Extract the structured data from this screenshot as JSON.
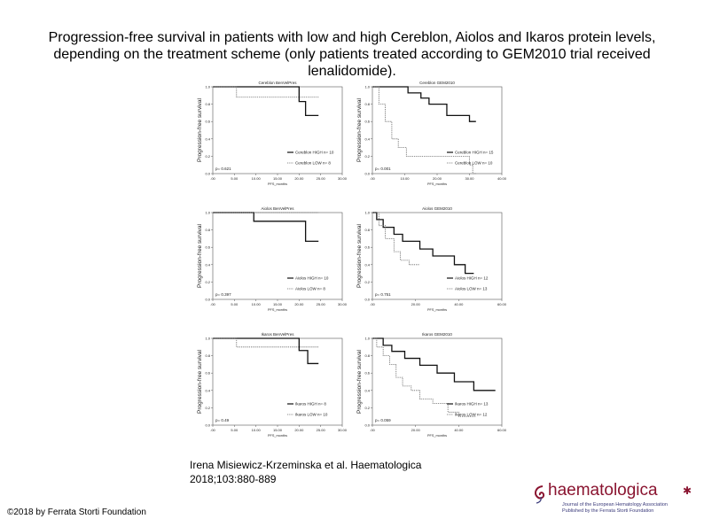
{
  "title": "Progression-free survival in patients with low and high Cereblon, Aiolos and Ikaros protein levels, depending on the treatment scheme (only patients treated according to GEM2010 trial received lenalidomide).",
  "citation": {
    "line1": "Irena Misiewicz-Krzeminska et al. Haematologica",
    "line2": "2018;103:880-889"
  },
  "copyright": "©2018 by Ferrata Storti Foundation",
  "logo": {
    "brand": "haematologica",
    "tagline1": "Journal of the European Hematology Association",
    "tagline2": "Published by the Ferrata Storti Foundation",
    "accent_color": "#8a1430"
  },
  "chart_data": [
    {
      "type": "line",
      "title": "Cereblon BenVelPres",
      "ylabel": "Progression-free survival",
      "xlabel": "PFS_months",
      "xlim": [
        0,
        30
      ],
      "ylim": [
        0,
        1
      ],
      "xticks": [
        ".00",
        "5.00",
        "10.00",
        "15.00",
        "20.00",
        "25.00",
        "30.00"
      ],
      "yticks": [
        "0.0",
        "0.2",
        "0.4",
        "0.6",
        "0.8",
        "1.0"
      ],
      "pvalue": "p= 0.621",
      "series": [
        {
          "name": "Cereblon HIGH n= 10",
          "style": "solid",
          "x": [
            0,
            20,
            20,
            21.5,
            21.5,
            24.5
          ],
          "y": [
            1.0,
            1.0,
            0.83,
            0.83,
            0.67,
            0.67
          ]
        },
        {
          "name": "Cereblon LOW n= 8",
          "style": "dotted",
          "x": [
            0,
            5.5,
            5.5,
            24.5
          ],
          "y": [
            1.0,
            1.0,
            0.88,
            0.88
          ]
        }
      ]
    },
    {
      "type": "line",
      "title": "Cereblon GEM2010",
      "ylabel": "Progression-free survival",
      "xlabel": "PFS_months",
      "xlim": [
        0,
        40
      ],
      "ylim": [
        0,
        1
      ],
      "xticks": [
        ".00",
        "10.00",
        "20.00",
        "30.00",
        "40.00"
      ],
      "yticks": [
        "0.0",
        "0.2",
        "0.4",
        "0.6",
        "0.8",
        "1.0"
      ],
      "pvalue": "p= 0.001",
      "series": [
        {
          "name": "Cereblon HIGH n= 15",
          "style": "solid",
          "x": [
            0,
            11,
            11,
            15,
            15,
            17.5,
            17.5,
            23,
            23,
            30,
            30,
            32
          ],
          "y": [
            1.0,
            1.0,
            0.93,
            0.93,
            0.87,
            0.87,
            0.8,
            0.8,
            0.67,
            0.67,
            0.6,
            0.6
          ]
        },
        {
          "name": "Cereblon LOW n= 10",
          "style": "dotted",
          "x": [
            0,
            2,
            2,
            4,
            4,
            6,
            6,
            8,
            8,
            10.5,
            10.5,
            30,
            30,
            31,
            31,
            32
          ],
          "y": [
            1.0,
            1.0,
            0.8,
            0.8,
            0.6,
            0.6,
            0.4,
            0.4,
            0.3,
            0.3,
            0.2,
            0.2,
            0.1,
            0.1,
            0.0,
            0.0
          ]
        }
      ]
    },
    {
      "type": "line",
      "title": "Aiolos BenVelPres",
      "ylabel": "Progression-free survival",
      "xlabel": "PFS_months",
      "xlim": [
        0,
        30
      ],
      "ylim": [
        0,
        1
      ],
      "xticks": [
        ".00",
        "5.00",
        "10.00",
        "15.00",
        "20.00",
        "25.00",
        "30.00"
      ],
      "yticks": [
        "0.0",
        "0.2",
        "0.4",
        "0.6",
        "0.8",
        "1.0"
      ],
      "pvalue": "p= 0.397",
      "series": [
        {
          "name": "Aiolos HIGH n= 10",
          "style": "solid",
          "x": [
            0,
            9.5,
            9.5,
            21.5,
            21.5,
            24.5
          ],
          "y": [
            1.0,
            1.0,
            0.9,
            0.9,
            0.67,
            0.67
          ]
        },
        {
          "name": "Aiolos LOW n= 8",
          "style": "dotted",
          "x": [
            0,
            24.5
          ],
          "y": [
            1.0,
            1.0
          ]
        }
      ]
    },
    {
      "type": "line",
      "title": "Aiolos GEM2010",
      "ylabel": "Progression-free survival",
      "xlabel": "PFS_months",
      "xlim": [
        0,
        60
      ],
      "ylim": [
        0,
        1
      ],
      "xticks": [
        ".00",
        "20.00",
        "40.00",
        "60.00"
      ],
      "yticks": [
        "0.0",
        "0.2",
        "0.4",
        "0.6",
        "0.8",
        "1.0"
      ],
      "pvalue": "p= 0.751",
      "series": [
        {
          "name": "Aiolos HIGH n= 12",
          "style": "solid",
          "x": [
            0,
            2,
            2,
            5,
            5,
            10,
            10,
            14,
            14,
            22,
            22,
            28,
            28,
            38,
            38,
            43,
            43,
            47
          ],
          "y": [
            1.0,
            1.0,
            0.92,
            0.92,
            0.83,
            0.83,
            0.75,
            0.75,
            0.67,
            0.67,
            0.58,
            0.58,
            0.5,
            0.5,
            0.4,
            0.4,
            0.3,
            0.3
          ]
        },
        {
          "name": "Aiolos LOW n= 13",
          "style": "dotted",
          "x": [
            0,
            3,
            3,
            6,
            6,
            10,
            10,
            13,
            13,
            17,
            17,
            20,
            20,
            22
          ],
          "y": [
            1.0,
            1.0,
            0.85,
            0.85,
            0.7,
            0.7,
            0.55,
            0.55,
            0.45,
            0.45,
            0.4,
            0.4,
            0.4,
            0.4
          ]
        }
      ]
    },
    {
      "type": "line",
      "title": "Ikaros BenVelPres",
      "ylabel": "Progression-free survival",
      "xlabel": "PFS_months",
      "xlim": [
        0,
        30
      ],
      "ylim": [
        0,
        1
      ],
      "xticks": [
        ".00",
        "5.00",
        "10.00",
        "15.00",
        "20.00",
        "25.00",
        "30.00"
      ],
      "yticks": [
        "0.0",
        "0.2",
        "0.4",
        "0.6",
        "0.8",
        "1.0"
      ],
      "pvalue": "p= 0.49",
      "series": [
        {
          "name": "Ikaros HIGH n= 8",
          "style": "solid",
          "x": [
            0,
            20,
            20,
            22,
            22,
            24.5
          ],
          "y": [
            1.0,
            1.0,
            0.86,
            0.86,
            0.71,
            0.71
          ]
        },
        {
          "name": "Ikaros LOW n= 10",
          "style": "dotted",
          "x": [
            0,
            5.5,
            5.5,
            24.5
          ],
          "y": [
            1.0,
            1.0,
            0.9,
            0.9
          ]
        }
      ]
    },
    {
      "type": "line",
      "title": "Ikaros GEM2010",
      "ylabel": "Progression-free survival",
      "xlabel": "PFS_months",
      "xlim": [
        0,
        60
      ],
      "ylim": [
        0,
        1
      ],
      "xticks": [
        ".00",
        "20.00",
        "40.00",
        "60.00"
      ],
      "yticks": [
        "0.0",
        "0.2",
        "0.4",
        "0.6",
        "0.8",
        "1.0"
      ],
      "pvalue": "p= 0.059",
      "series": [
        {
          "name": "Ikaros HIGH n= 13",
          "style": "solid",
          "x": [
            0,
            5,
            5,
            9,
            9,
            15,
            15,
            22,
            22,
            30,
            30,
            38,
            38,
            47,
            47,
            57
          ],
          "y": [
            1.0,
            1.0,
            0.92,
            0.92,
            0.85,
            0.85,
            0.77,
            0.77,
            0.69,
            0.69,
            0.6,
            0.6,
            0.5,
            0.5,
            0.4,
            0.4
          ]
        },
        {
          "name": "Ikaros LOW n= 12",
          "style": "dotted",
          "x": [
            0,
            2,
            2,
            5,
            5,
            8,
            8,
            11,
            11,
            14,
            14,
            18,
            18,
            22,
            22,
            28,
            28,
            35,
            35,
            40,
            40,
            48
          ],
          "y": [
            1.0,
            1.0,
            0.9,
            0.9,
            0.8,
            0.8,
            0.7,
            0.7,
            0.55,
            0.55,
            0.45,
            0.45,
            0.4,
            0.4,
            0.3,
            0.3,
            0.25,
            0.25,
            0.15,
            0.15,
            0.1,
            0.1
          ]
        }
      ]
    }
  ]
}
